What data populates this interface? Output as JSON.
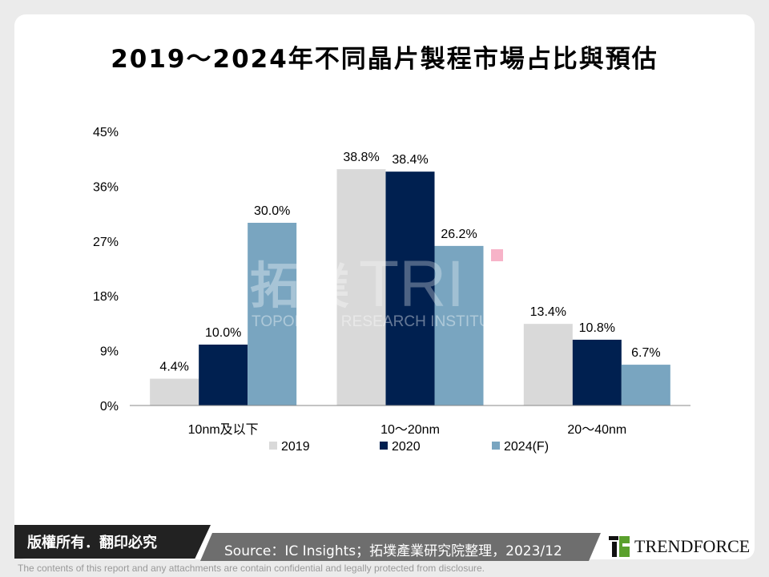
{
  "chart_data": {
    "type": "bar",
    "title": "2019～2024年不同晶片製程市場占比與預估",
    "categories": [
      "10nm及以下",
      "10～20nm",
      "20～40nm"
    ],
    "series": [
      {
        "name": "2019",
        "values": [
          4.4,
          38.8,
          13.4
        ],
        "color": "#d9d9d9"
      },
      {
        "name": "2020",
        "values": [
          10.0,
          38.4,
          10.8
        ],
        "color": "#002050"
      },
      {
        "name": "2024(F)",
        "values": [
          30.0,
          26.2,
          6.7
        ],
        "color": "#79a5c0"
      }
    ],
    "data_labels": [
      [
        "4.4%",
        "38.8%",
        "13.4%"
      ],
      [
        "10.0%",
        "38.4%",
        "10.8%"
      ],
      [
        "30.0%",
        "26.2%",
        "6.7%"
      ]
    ],
    "yticks": [
      "0%",
      "9%",
      "18%",
      "27%",
      "36%",
      "45%"
    ],
    "ylim": [
      0,
      45
    ],
    "grid": false,
    "legend": "bottom"
  },
  "watermark": {
    "chinese": "拓墣",
    "mark": "TRI",
    "english": "TOPOLOGY RESEARCH INSTITUTE"
  },
  "footer": {
    "copyright": "版權所有．翻印必究",
    "source": "Source：IC Insights；拓墣產業研究院整理，2023/12",
    "brand": "TRENDFORCE",
    "disclaimer": "The contents of this report and any attachments are contain confidential and legally protected from disclosure."
  }
}
